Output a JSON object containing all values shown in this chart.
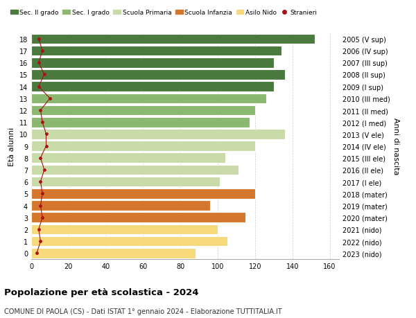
{
  "ages": [
    0,
    1,
    2,
    3,
    4,
    5,
    6,
    7,
    8,
    9,
    10,
    11,
    12,
    13,
    14,
    15,
    16,
    17,
    18
  ],
  "years": [
    "2023 (nido)",
    "2022 (nido)",
    "2021 (nido)",
    "2020 (mater)",
    "2019 (mater)",
    "2018 (mater)",
    "2017 (I ele)",
    "2016 (II ele)",
    "2015 (III ele)",
    "2014 (IV ele)",
    "2013 (V ele)",
    "2012 (I med)",
    "2011 (II med)",
    "2010 (III med)",
    "2009 (I sup)",
    "2008 (II sup)",
    "2007 (III sup)",
    "2006 (IV sup)",
    "2005 (V sup)"
  ],
  "values": [
    88,
    105,
    100,
    115,
    96,
    120,
    101,
    111,
    104,
    120,
    136,
    117,
    120,
    126,
    130,
    136,
    130,
    134,
    152
  ],
  "stranieri": [
    3,
    5,
    4,
    6,
    5,
    6,
    5,
    7,
    5,
    8,
    8,
    6,
    5,
    10,
    4,
    7,
    4,
    6,
    4
  ],
  "bar_colors": {
    "nido": "#f5d97a",
    "mater": "#d4762b",
    "ele": "#c8dba8",
    "med": "#8ab870",
    "sup": "#4a7a3d"
  },
  "age_to_school": {
    "0": "nido",
    "1": "nido",
    "2": "nido",
    "3": "mater",
    "4": "mater",
    "5": "mater",
    "6": "ele",
    "7": "ele",
    "8": "ele",
    "9": "ele",
    "10": "ele",
    "11": "med",
    "12": "med",
    "13": "med",
    "14": "sup",
    "15": "sup",
    "16": "sup",
    "17": "sup",
    "18": "sup"
  },
  "stranieri_color": "#aa1111",
  "xlim": [
    0,
    165
  ],
  "title": "Popolazione per età scolastica - 2024",
  "subtitle": "COMUNE DI PAOLA (CS) - Dati ISTAT 1° gennaio 2024 - Elaborazione TUTTITALIA.IT",
  "ylabel": "Età alunni",
  "right_label": "Anni di nascita",
  "legend_labels": [
    "Sec. II grado",
    "Sec. I grado",
    "Scuola Primaria",
    "Scuola Infanzia",
    "Asilo Nido",
    "Stranieri"
  ],
  "legend_colors": [
    "#4a7a3d",
    "#8ab870",
    "#c8dba8",
    "#d4762b",
    "#f5d97a",
    "#aa1111"
  ],
  "background_color": "#ffffff",
  "bar_height": 0.85,
  "grid_color": "#cccccc"
}
